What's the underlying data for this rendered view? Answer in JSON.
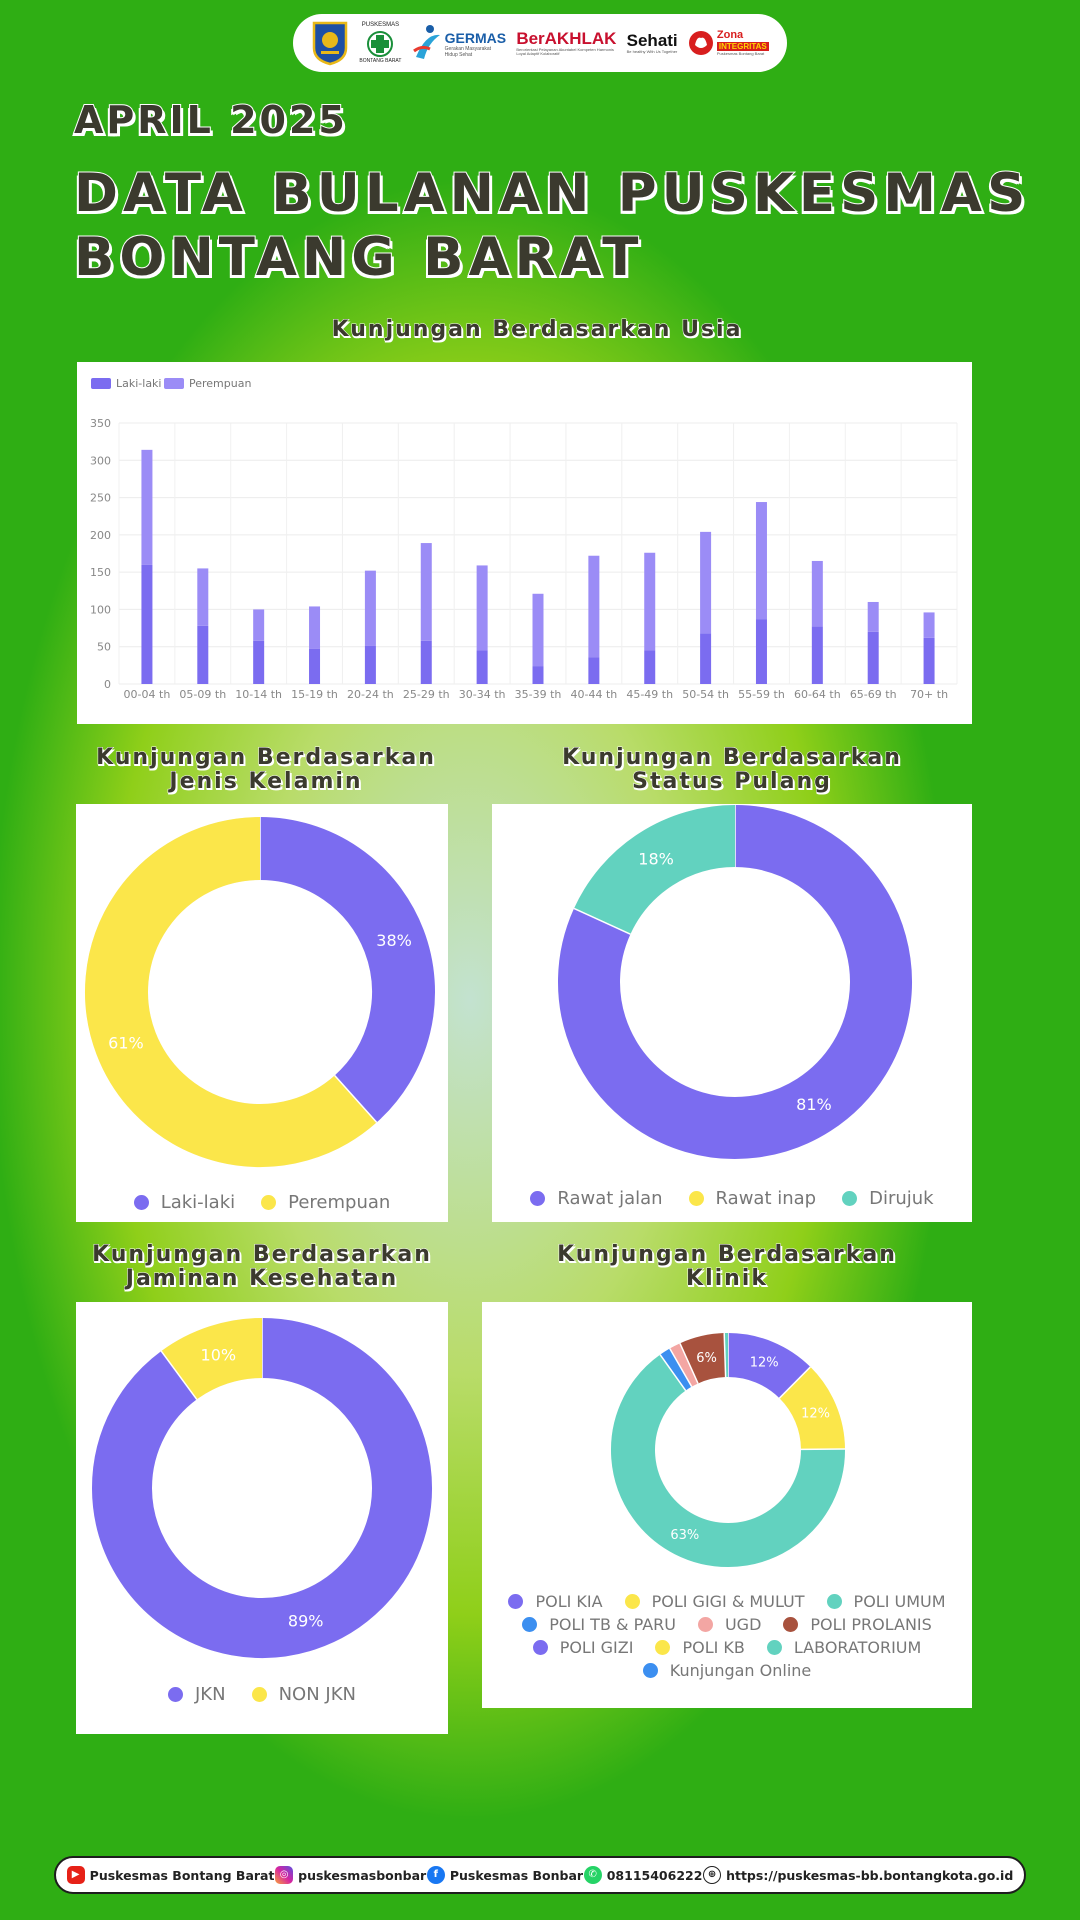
{
  "logos": {
    "puskesmas_top": "PUSKESMAS",
    "puskesmas_bottom": "BONTANG BARAT",
    "germas": "GERMAS",
    "germas_sub": "Gerakan Masyarakat Hidup Sehat",
    "berakhlak": "BerAKHLAK",
    "berakhlak_sub": "Berorientasi Pelayanan Akuntabel Kompeten Harmonis Loyal Adaptif Kolaboratif",
    "sehati": "Sehati",
    "sehati_sub": "Be healthy With Us Together",
    "zona": "Zona",
    "zona_integritas": "INTEGRITAS",
    "zona_sub": "Puskesmas Bontang Barat",
    "colors": {
      "kota": "#1d4fa3",
      "germas": "#1a5ea8",
      "berakhlak": "#c8102e",
      "zona": "#d81e1e"
    }
  },
  "header": {
    "month": "APRIL 2025",
    "title_line1": "DATA BULANAN PUSKESMAS",
    "title_line2": "BONTANG BARAT"
  },
  "colors": {
    "laki": "#7b6cf0",
    "perempuan": "#9b8cf6",
    "purple": "#7b6cf0",
    "yellow": "#fbe64a",
    "teal": "#62d2bf",
    "blue": "#3c8ff0",
    "pink": "#f3a6a3",
    "brown": "#a8523e"
  },
  "age_chart": {
    "title": "Kunjungan Berdasarkan Usia",
    "chart_data": {
      "type": "bar",
      "stacked": true,
      "categories": [
        "00-04 th",
        "05-09 th",
        "10-14 th",
        "15-19 th",
        "20-24 th",
        "25-29 th",
        "30-34 th",
        "35-39 th",
        "40-44 th",
        "45-49 th",
        "50-54 th",
        "55-59 th",
        "60-64 th",
        "65-69 th",
        "70+ th"
      ],
      "series": [
        {
          "name": "Laki-laki",
          "values": [
            160,
            78,
            58,
            47,
            51,
            58,
            45,
            24,
            36,
            45,
            68,
            87,
            77,
            70,
            62
          ]
        },
        {
          "name": "Perempuan",
          "values": [
            154,
            77,
            42,
            57,
            101,
            131,
            114,
            97,
            136,
            131,
            136,
            157,
            88,
            40,
            34
          ]
        }
      ],
      "yticks": [
        0,
        50,
        100,
        150,
        200,
        250,
        300,
        350
      ],
      "ylim": [
        0,
        350
      ],
      "legend_position": "top-left",
      "grid": true
    }
  },
  "gender_chart": {
    "title_line1": "Kunjungan Berdasarkan",
    "title_line2": "Jenis Kelamin",
    "chart_data": {
      "type": "pie",
      "donut": true,
      "labels": [
        "Laki-laki",
        "Perempuan"
      ],
      "values": [
        38,
        61
      ],
      "value_labels": [
        "38%",
        "61%"
      ],
      "legend_position": "bottom"
    }
  },
  "status_chart": {
    "title_line1": "Kunjungan Berdasarkan",
    "title_line2": "Status Pulang",
    "chart_data": {
      "type": "pie",
      "donut": true,
      "labels": [
        "Rawat jalan",
        "Rawat inap",
        "Dirujuk"
      ],
      "values": [
        81,
        0,
        18
      ],
      "value_labels": [
        "81%",
        "",
        "18%"
      ],
      "legend_position": "bottom"
    }
  },
  "insurance_chart": {
    "title_line1": "Kunjungan Berdasarkan",
    "title_line2": "Jaminan Kesehatan",
    "chart_data": {
      "type": "pie",
      "donut": true,
      "labels": [
        "JKN",
        "NON JKN"
      ],
      "values": [
        89,
        10
      ],
      "value_labels": [
        "89%",
        "10%"
      ],
      "legend_position": "bottom"
    }
  },
  "clinic_chart": {
    "title_line1": "Kunjungan Berdasarkan",
    "title_line2": "Klinik",
    "chart_data": {
      "type": "pie",
      "donut": true,
      "labels": [
        "POLI KIA",
        "POLI GIGI & MULUT",
        "POLI UMUM",
        "POLI TB & PARU",
        "UGD",
        "POLI PROLANIS",
        "POLI GIZI",
        "POLI KB",
        "LABORATORIUM",
        "Kunjungan Online"
      ],
      "values": [
        12,
        12,
        63,
        1.5,
        1.5,
        6,
        0,
        0,
        0.5,
        0
      ],
      "value_labels": [
        "12%",
        "12%",
        "63%",
        "",
        "",
        "6%",
        "",
        "",
        "",
        ""
      ],
      "legend_position": "bottom"
    }
  },
  "footer": {
    "youtube": "Puskesmas Bontang Barat",
    "instagram": "puskesmasbonbar",
    "facebook": "Puskesmas Bonbar",
    "whatsapp": "08115406222",
    "website": "https://puskesmas-bb.bontangkota.go.id"
  }
}
